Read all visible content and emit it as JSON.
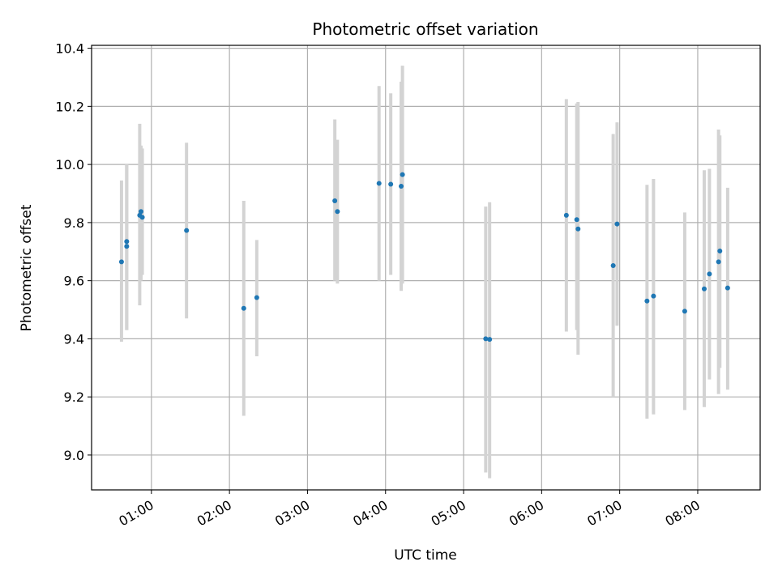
{
  "chart_data": {
    "type": "scatter",
    "title": "Photometric offset variation",
    "xlabel": "UTC time",
    "ylabel": "Photometric offset",
    "xlim": [
      "00:14",
      "08:48"
    ],
    "ylim": [
      8.88,
      10.41
    ],
    "x_ticks": [
      "01:00",
      "02:00",
      "03:00",
      "04:00",
      "05:00",
      "06:00",
      "07:00",
      "08:00"
    ],
    "y_ticks": [
      "9.0",
      "9.2",
      "9.4",
      "9.6",
      "9.8",
      "10.0",
      "10.2",
      "10.4"
    ],
    "grid": true,
    "colors": {
      "points": "#1f77b4",
      "errorbars": "#d3d3d3",
      "grid": "#b0b0b0"
    },
    "points": [
      {
        "x": "00:37",
        "y": 9.665,
        "low": 9.39,
        "high": 9.945
      },
      {
        "x": "00:41",
        "y": 9.735,
        "low": 9.43,
        "high": 10.0
      },
      {
        "x": "00:41",
        "y": 9.718,
        "low": 9.43,
        "high": 10.0
      },
      {
        "x": "00:51",
        "y": 9.825,
        "low": 9.515,
        "high": 10.14
      },
      {
        "x": "00:52",
        "y": 9.838,
        "low": 9.6,
        "high": 10.065
      },
      {
        "x": "00:53",
        "y": 9.818,
        "low": 9.62,
        "high": 10.055
      },
      {
        "x": "01:27",
        "y": 9.773,
        "low": 9.47,
        "high": 10.075
      },
      {
        "x": "02:11",
        "y": 9.505,
        "low": 9.135,
        "high": 9.875
      },
      {
        "x": "02:21",
        "y": 9.542,
        "low": 9.34,
        "high": 9.74
      },
      {
        "x": "03:21",
        "y": 9.875,
        "low": 9.6,
        "high": 10.155
      },
      {
        "x": "03:23",
        "y": 9.838,
        "low": 9.59,
        "high": 10.085
      },
      {
        "x": "03:55",
        "y": 9.935,
        "low": 9.6,
        "high": 10.27
      },
      {
        "x": "04:04",
        "y": 9.932,
        "low": 9.62,
        "high": 10.245
      },
      {
        "x": "04:12",
        "y": 9.925,
        "low": 9.565,
        "high": 10.285
      },
      {
        "x": "04:13",
        "y": 9.965,
        "low": 9.59,
        "high": 10.34
      },
      {
        "x": "05:17",
        "y": 9.4,
        "low": 8.94,
        "high": 9.855
      },
      {
        "x": "05:20",
        "y": 9.398,
        "low": 8.92,
        "high": 9.87
      },
      {
        "x": "06:19",
        "y": 9.825,
        "low": 9.425,
        "high": 10.225
      },
      {
        "x": "06:27",
        "y": 9.81,
        "low": 9.43,
        "high": 10.21
      },
      {
        "x": "06:28",
        "y": 9.778,
        "low": 9.345,
        "high": 10.215
      },
      {
        "x": "06:55",
        "y": 9.652,
        "low": 9.2,
        "high": 10.105
      },
      {
        "x": "06:58",
        "y": 9.795,
        "low": 9.445,
        "high": 10.145
      },
      {
        "x": "07:21",
        "y": 9.53,
        "low": 9.125,
        "high": 9.93
      },
      {
        "x": "07:26",
        "y": 9.547,
        "low": 9.14,
        "high": 9.95
      },
      {
        "x": "07:50",
        "y": 9.495,
        "low": 9.155,
        "high": 9.835
      },
      {
        "x": "08:05",
        "y": 9.572,
        "low": 9.165,
        "high": 9.98
      },
      {
        "x": "08:09",
        "y": 9.623,
        "low": 9.26,
        "high": 9.985
      },
      {
        "x": "08:16",
        "y": 9.665,
        "low": 9.21,
        "high": 10.12
      },
      {
        "x": "08:17",
        "y": 9.702,
        "low": 9.3,
        "high": 10.1
      },
      {
        "x": "08:23",
        "y": 9.575,
        "low": 9.225,
        "high": 9.92
      }
    ]
  }
}
